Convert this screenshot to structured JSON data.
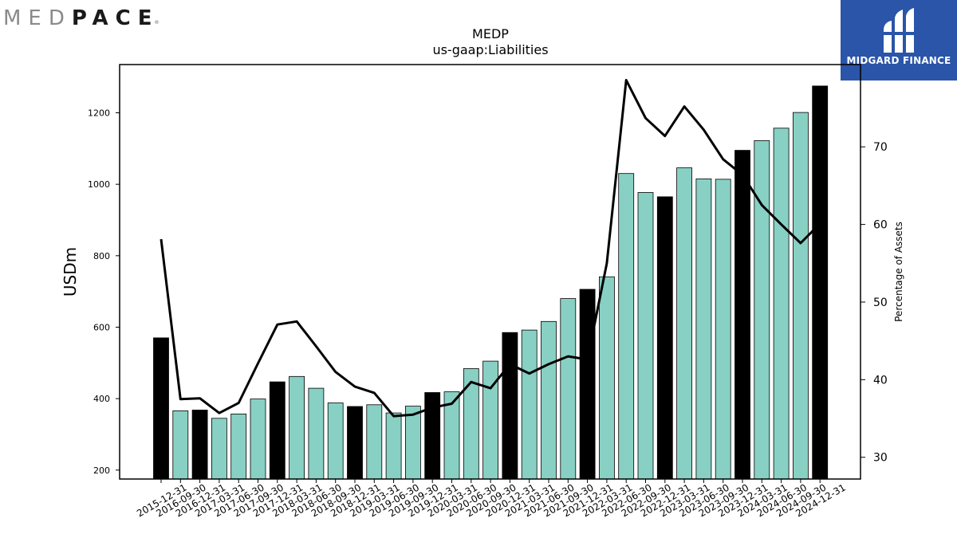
{
  "logos": {
    "left_part1": "MED",
    "left_part2": "PACE",
    "left_reg": "®",
    "right_name": "MIDGARD FINANCE"
  },
  "chart_data": {
    "type": "bar",
    "title": "MEDP",
    "subtitle": "us-gaap:Liabilities",
    "ylabel": "USDm",
    "y2label": "Percentage of Assets",
    "ylim": [
      175,
      1335
    ],
    "y2lim": [
      27.2,
      80.6
    ],
    "yticks": [
      200,
      400,
      600,
      800,
      1000,
      1200
    ],
    "y2ticks": [
      30,
      40,
      50,
      60,
      70
    ],
    "colors": {
      "annual": "#000000",
      "quarter": "#88d0c4",
      "line": "#000000"
    },
    "categories": [
      "2015-12-31",
      "2016-09-30",
      "2016-12-31",
      "2017-03-31",
      "2017-06-30",
      "2017-09-30",
      "2017-12-31",
      "2018-03-31",
      "2018-06-30",
      "2018-09-30",
      "2018-12-31",
      "2019-03-31",
      "2019-06-30",
      "2019-09-30",
      "2019-12-31",
      "2020-03-31",
      "2020-06-30",
      "2020-09-30",
      "2020-12-31",
      "2021-03-31",
      "2021-06-30",
      "2021-09-30",
      "2021-12-31",
      "2022-03-31",
      "2022-06-30",
      "2022-09-30",
      "2022-12-31",
      "2023-03-31",
      "2023-06-30",
      "2023-09-30",
      "2023-12-31",
      "2024-03-31",
      "2024-06-30",
      "2024-09-30",
      "2024-12-31"
    ],
    "series": [
      {
        "kind": "bar",
        "values": [
          570,
          366,
          368,
          345,
          357,
          399,
          447,
          462,
          429,
          388,
          378,
          383,
          360,
          379,
          417,
          419,
          484,
          505,
          585,
          592,
          616,
          680,
          706,
          741,
          1030,
          977,
          965,
          1046,
          1015,
          1014,
          1095,
          1122,
          1157,
          1201,
          1275
        ],
        "year_end": [
          true,
          false,
          true,
          false,
          false,
          false,
          true,
          false,
          false,
          false,
          true,
          false,
          false,
          false,
          true,
          false,
          false,
          false,
          true,
          false,
          false,
          false,
          true,
          false,
          false,
          false,
          true,
          false,
          false,
          false,
          true,
          false,
          false,
          false,
          true
        ]
      },
      {
        "kind": "line",
        "axis": "right",
        "values": [
          58.1,
          37.5,
          37.6,
          35.7,
          37.0,
          42.1,
          47.1,
          47.5,
          44.3,
          41.0,
          39.1,
          38.3,
          35.3,
          35.5,
          36.4,
          36.9,
          39.7,
          38.9,
          42.0,
          40.8,
          42.0,
          43.0,
          42.6,
          55.0,
          78.6,
          73.7,
          71.4,
          75.2,
          72.2,
          68.4,
          66.4,
          62.5,
          60.0,
          57.6,
          60.1
        ]
      }
    ]
  }
}
